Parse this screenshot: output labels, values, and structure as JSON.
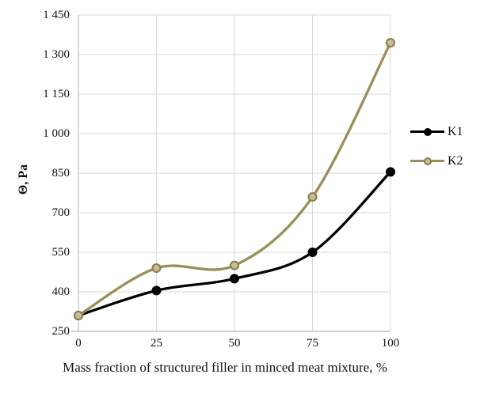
{
  "chart_data": {
    "type": "line",
    "title": "",
    "xlabel": "Mass fraction of structured filler in minced meat mixture, %",
    "ylabel": "Θ, Pa",
    "x": [
      0,
      25,
      50,
      75,
      100
    ],
    "x_tick_labels": [
      "0",
      "25",
      "50",
      "75",
      "100"
    ],
    "y_ticks": [
      250,
      400,
      550,
      700,
      850,
      1000,
      1150,
      1300,
      1450
    ],
    "y_tick_labels": [
      "250",
      "400",
      "550",
      "700",
      "850",
      "1 000",
      "1 150",
      "1 300",
      "1 450"
    ],
    "xlim": [
      0,
      100
    ],
    "ylim": [
      250,
      1450
    ],
    "grid": true,
    "line_style": "smooth",
    "legend_position": "right",
    "series": [
      {
        "name": "K1",
        "values": [
          310,
          405,
          450,
          550,
          855
        ],
        "line_color": "#000000",
        "marker_fill": "#000000",
        "marker_stroke": "#000000"
      },
      {
        "name": "K2",
        "values": [
          310,
          490,
          500,
          760,
          1345
        ],
        "line_color": "#9A8E5A",
        "marker_fill": "#C8BC96",
        "marker_stroke": "#8A7E4C"
      }
    ]
  },
  "colors": {
    "gridline": "#D9D9D9",
    "axis_line": "#C0C0C0",
    "text": "#111111",
    "background": "#FFFFFF"
  }
}
